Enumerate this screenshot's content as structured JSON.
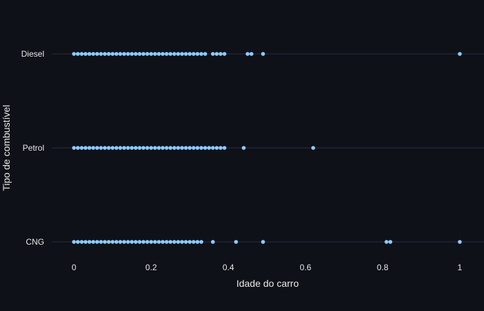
{
  "chart_data": {
    "type": "scatter",
    "title": "",
    "xlabel": "Idade do carro",
    "ylabel": "Tipo de combustível",
    "xlim": [
      -0.06,
      1.06
    ],
    "x_ticks": [
      0,
      0.2,
      0.4,
      0.6,
      0.8,
      1
    ],
    "x_tick_labels": [
      "0",
      "0.2",
      "0.4",
      "0.6",
      "0.8",
      "1"
    ],
    "categories": [
      "Diesel",
      "Petrol",
      "CNG"
    ],
    "grid": true,
    "legend": "none",
    "colors": {
      "background": "#0f1118",
      "marker": "#8ecbff",
      "gridline": "#283040",
      "text": "#e8e8e8"
    },
    "series": [
      {
        "category": "Diesel",
        "x": [
          0,
          0.01,
          0.02,
          0.03,
          0.04,
          0.05,
          0.06,
          0.07,
          0.08,
          0.09,
          0.1,
          0.11,
          0.12,
          0.13,
          0.14,
          0.15,
          0.16,
          0.17,
          0.18,
          0.19,
          0.2,
          0.21,
          0.22,
          0.23,
          0.24,
          0.25,
          0.26,
          0.27,
          0.28,
          0.29,
          0.3,
          0.31,
          0.32,
          0.33,
          0.34,
          0.36,
          0.37,
          0.38,
          0.39,
          0.45,
          0.46,
          0.49,
          1
        ]
      },
      {
        "category": "Petrol",
        "x": [
          0,
          0.01,
          0.02,
          0.03,
          0.04,
          0.05,
          0.06,
          0.07,
          0.08,
          0.09,
          0.1,
          0.11,
          0.12,
          0.13,
          0.14,
          0.15,
          0.16,
          0.17,
          0.18,
          0.19,
          0.2,
          0.21,
          0.22,
          0.23,
          0.24,
          0.25,
          0.26,
          0.27,
          0.28,
          0.29,
          0.3,
          0.31,
          0.32,
          0.33,
          0.34,
          0.35,
          0.36,
          0.37,
          0.38,
          0.39,
          0.44,
          0.62
        ]
      },
      {
        "category": "CNG",
        "x": [
          0,
          0.01,
          0.02,
          0.03,
          0.04,
          0.05,
          0.06,
          0.07,
          0.08,
          0.09,
          0.1,
          0.11,
          0.12,
          0.13,
          0.14,
          0.15,
          0.16,
          0.17,
          0.18,
          0.19,
          0.2,
          0.21,
          0.22,
          0.23,
          0.24,
          0.25,
          0.26,
          0.27,
          0.28,
          0.29,
          0.3,
          0.31,
          0.32,
          0.33,
          0.36,
          0.42,
          0.49,
          0.81,
          0.82,
          1
        ]
      }
    ]
  }
}
